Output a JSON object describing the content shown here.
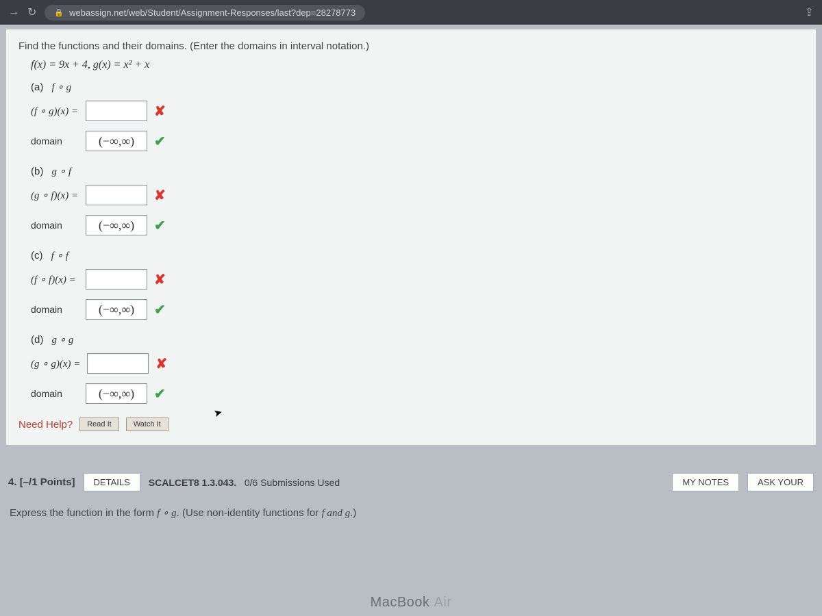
{
  "browser": {
    "url": "webassign.net/web/Student/Assignment-Responses/last?dep=28278773"
  },
  "question": {
    "instructions": "Find the functions and their domains. (Enter the domains in interval notation.)",
    "formula_f": "f(x) = 9x + 4,",
    "formula_g": "g(x) = x² + x",
    "parts": {
      "a": {
        "label": "(a)",
        "comp": "f ∘ g",
        "lhs": "(f ∘ g)(x) =",
        "expr_mark": "wrong",
        "domain_label": "domain",
        "domain_value": "(−∞,∞)",
        "domain_mark": "right"
      },
      "b": {
        "label": "(b)",
        "comp": "g ∘ f",
        "lhs": "(g ∘ f)(x) =",
        "expr_mark": "wrong",
        "domain_label": "domain",
        "domain_value": "(−∞,∞)",
        "domain_mark": "right"
      },
      "c": {
        "label": "(c)",
        "comp": "f ∘ f",
        "lhs": "(f ∘ f)(x) =",
        "expr_mark": "wrong",
        "domain_label": "domain",
        "domain_value": "(−∞,∞)",
        "domain_mark": "right"
      },
      "d": {
        "label": "(d)",
        "comp": "g ∘ g",
        "lhs": "(g ∘ g)(x) =",
        "expr_mark": "wrong",
        "domain_label": "domain",
        "domain_value": "(−∞,∞)",
        "domain_mark": "right"
      }
    },
    "need_help_label": "Need Help?",
    "read_it": "Read It",
    "watch_it": "Watch It"
  },
  "next_question": {
    "number": "4.",
    "points": "[–/1 Points]",
    "details": "DETAILS",
    "source": "SCALCET8 1.3.043.",
    "submissions": "0/6 Submissions Used",
    "my_notes": "MY NOTES",
    "ask": "ASK YOUR",
    "prompt_prefix": "Express the function in the form ",
    "prompt_comp": "f ∘ g",
    "prompt_suffix": ". (Use non-identity functions for ",
    "prompt_fg": "f and g",
    "prompt_end": ".)"
  },
  "device": {
    "brand": "MacBook ",
    "model": "Air"
  },
  "marks": {
    "wrong": "✘",
    "right": "✔"
  }
}
